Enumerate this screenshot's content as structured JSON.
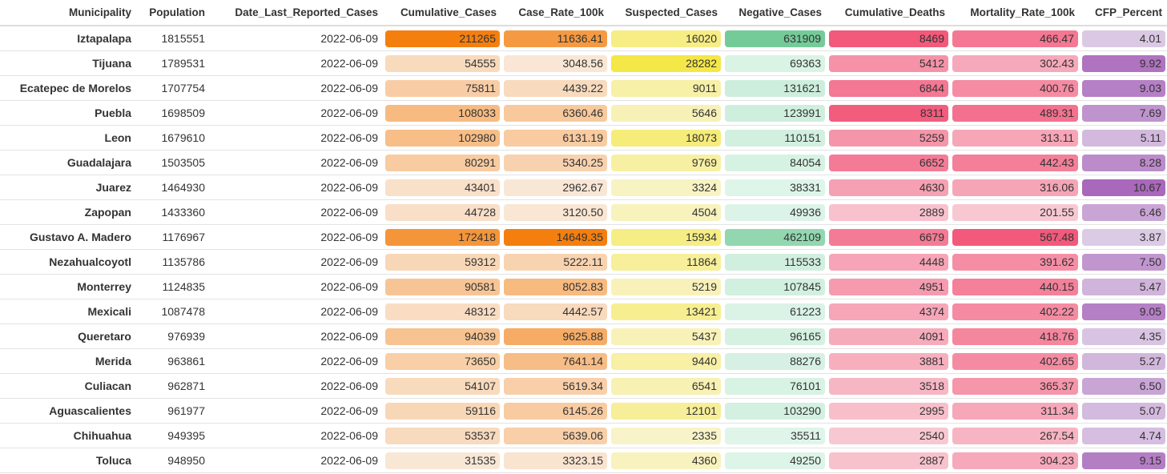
{
  "chart_data": {
    "type": "table",
    "columns": [
      "Municipality",
      "Population",
      "Date_Last_Reported_Cases",
      "Cumulative_Cases",
      "Case_Rate_100k",
      "Suspected_Cases",
      "Negative_Cases",
      "Cumulative_Deaths",
      "Mortality_Rate_100k",
      "CFP_Percent"
    ],
    "rows": [
      [
        "Iztapalapa",
        "1815551",
        "2022-06-09",
        "211265",
        "11636.41",
        "16020",
        "631909",
        "8469",
        "466.47",
        "4.01"
      ],
      [
        "Tijuana",
        "1789531",
        "2022-06-09",
        "54555",
        "3048.56",
        "28282",
        "69363",
        "5412",
        "302.43",
        "9.92"
      ],
      [
        "Ecatepec de Morelos",
        "1707754",
        "2022-06-09",
        "75811",
        "4439.22",
        "9011",
        "131621",
        "6844",
        "400.76",
        "9.03"
      ],
      [
        "Puebla",
        "1698509",
        "2022-06-09",
        "108033",
        "6360.46",
        "5646",
        "123991",
        "8311",
        "489.31",
        "7.69"
      ],
      [
        "Leon",
        "1679610",
        "2022-06-09",
        "102980",
        "6131.19",
        "18073",
        "110151",
        "5259",
        "313.11",
        "5.11"
      ],
      [
        "Guadalajara",
        "1503505",
        "2022-06-09",
        "80291",
        "5340.25",
        "9769",
        "84054",
        "6652",
        "442.43",
        "8.28"
      ],
      [
        "Juarez",
        "1464930",
        "2022-06-09",
        "43401",
        "2962.67",
        "3324",
        "38331",
        "4630",
        "316.06",
        "10.67"
      ],
      [
        "Zapopan",
        "1433360",
        "2022-06-09",
        "44728",
        "3120.50",
        "4504",
        "49936",
        "2889",
        "201.55",
        "6.46"
      ],
      [
        "Gustavo A. Madero",
        "1176967",
        "2022-06-09",
        "172418",
        "14649.35",
        "15934",
        "462109",
        "6679",
        "567.48",
        "3.87"
      ],
      [
        "Nezahualcoyotl",
        "1135786",
        "2022-06-09",
        "59312",
        "5222.11",
        "11864",
        "115533",
        "4448",
        "391.62",
        "7.50"
      ],
      [
        "Monterrey",
        "1124835",
        "2022-06-09",
        "90581",
        "8052.83",
        "5219",
        "107845",
        "4951",
        "440.15",
        "5.47"
      ],
      [
        "Mexicali",
        "1087478",
        "2022-06-09",
        "48312",
        "4442.57",
        "13421",
        "61223",
        "4374",
        "402.22",
        "9.05"
      ],
      [
        "Queretaro",
        "976939",
        "2022-06-09",
        "94039",
        "9625.88",
        "5437",
        "96165",
        "4091",
        "418.76",
        "4.35"
      ],
      [
        "Merida",
        "963861",
        "2022-06-09",
        "73650",
        "7641.14",
        "9440",
        "88276",
        "3881",
        "402.65",
        "5.27"
      ],
      [
        "Culiacan",
        "962871",
        "2022-06-09",
        "54107",
        "5619.34",
        "6541",
        "76101",
        "3518",
        "365.37",
        "6.50"
      ],
      [
        "Aguascalientes",
        "961977",
        "2022-06-09",
        "59116",
        "6145.26",
        "12101",
        "103290",
        "2995",
        "311.34",
        "5.07"
      ],
      [
        "Chihuahua",
        "949395",
        "2022-06-09",
        "53537",
        "5639.06",
        "2335",
        "35511",
        "2540",
        "267.54",
        "4.74"
      ],
      [
        "Toluca",
        "948950",
        "2022-06-09",
        "31535",
        "3323.15",
        "4360",
        "49250",
        "2887",
        "304.23",
        "9.15"
      ]
    ],
    "heat_columns": [
      {
        "column": "Cumulative_Cases",
        "color_low": "#f9e7d6",
        "color_high": "#f47f0f"
      },
      {
        "column": "Case_Rate_100k",
        "color_low": "#f9e7d6",
        "color_high": "#f47f0f"
      },
      {
        "column": "Suspected_Cases",
        "color_low": "#f8f3c8",
        "color_high": "#f4e748"
      },
      {
        "column": "Negative_Cases",
        "color_low": "#dff5ea",
        "color_high": "#74cb98"
      },
      {
        "column": "Cumulative_Deaths",
        "color_low": "#f8c8d2",
        "color_high": "#f2597b"
      },
      {
        "column": "Mortality_Rate_100k",
        "color_low": "#f8c8d2",
        "color_high": "#f2597b"
      },
      {
        "column": "CFP_Percent",
        "color_low": "#dccbe5",
        "color_high": "#a968bb"
      }
    ]
  }
}
